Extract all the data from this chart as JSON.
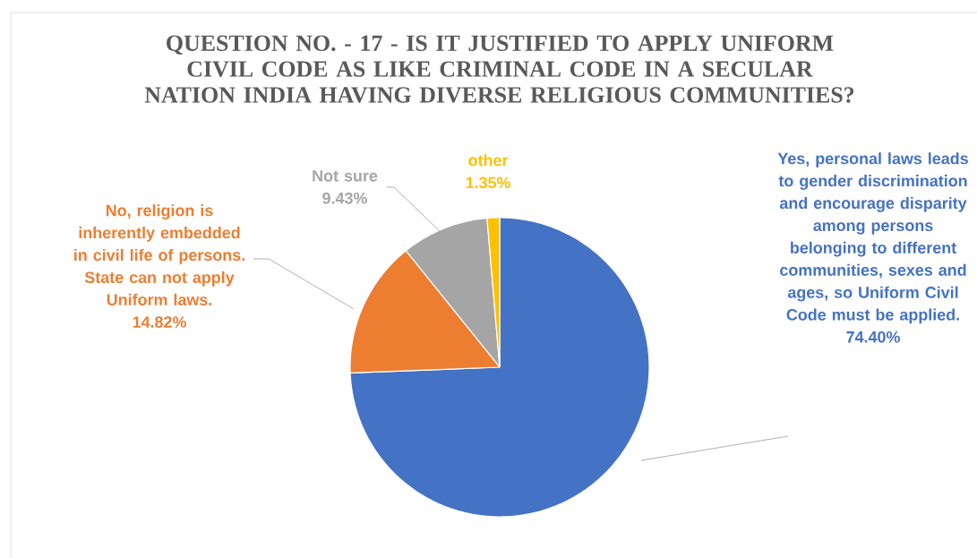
{
  "chart_data": {
    "type": "pie",
    "title": "QUESTION NO. - 17 - IS IT JUSTIFIED TO APPLY UNIFORM CIVIL CODE AS LIKE CRIMINAL CODE IN A SECULAR NATION INDIA HAVING DIVERSE RELIGIOUS COMMUNITIES?",
    "categories": [
      "Yes, personal laws leads to gender discrimination and encourage disparity among persons belonging to different communities, sexes and ages, so Uniform Civil Code must be applied.",
      "No, religion is inherently embedded in civil life of persons. State can not apply Uniform laws.",
      "Not sure",
      "other"
    ],
    "values": [
      74.4,
      14.82,
      9.43,
      1.35
    ],
    "value_labels": [
      "74.40%",
      "14.82%",
      "9.43%",
      "1.35%"
    ],
    "colors": [
      "#4472c4",
      "#ed7d31",
      "#a5a5a5",
      "#ffc000"
    ]
  }
}
